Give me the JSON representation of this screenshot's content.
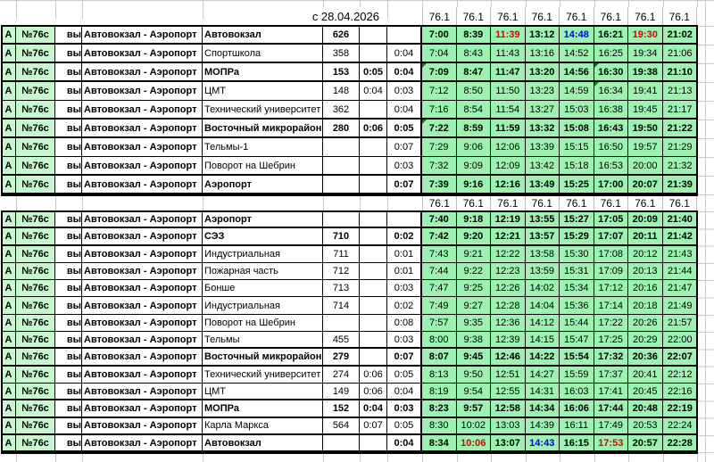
{
  "date_label": "с 28.04.2026",
  "column_header": "76.1",
  "header_repeat": 8,
  "route_prefix": {
    "letter": "А",
    "number": "№76с",
    "day": "вы",
    "route": "Автовокзал - Аэропорт"
  },
  "colors": {
    "time_cell_bg": "#9df2b1",
    "left_cell_bg": "#c8f7cf",
    "note_marker": "#0d7a0d",
    "highlight_red": "#e00000",
    "highlight_blue": "#0000ee"
  },
  "tables": [
    {
      "rows": [
        {
          "stop": "Автовокзал",
          "bold": true,
          "num": "626",
          "off1": "",
          "off2": "",
          "times": [
            "7:00",
            "8:39",
            "11:39",
            "13:12",
            "14:48",
            "16:21",
            "19:30",
            "21:02"
          ],
          "time_colors": {
            "2": "red",
            "4": "blue",
            "6": "red"
          }
        },
        {
          "stop": "Спортшкола",
          "num": "358",
          "off1": "",
          "off2": "0:04",
          "times": [
            "7:04",
            "8:43",
            "11:43",
            "13:16",
            "14:52",
            "16:25",
            "19:34",
            "21:06"
          ]
        },
        {
          "stop": "МОПРа",
          "bold": true,
          "num": "153",
          "off1": "0:05",
          "off2": "0:04",
          "times": [
            "7:09",
            "8:47",
            "11:47",
            "13:20",
            "14:56",
            "16:30",
            "19:38",
            "21:10"
          ],
          "notes": [
            0,
            5
          ]
        },
        {
          "stop": "ЦМТ",
          "num": "148",
          "off1": "0:04",
          "off2": "0:03",
          "times": [
            "7:12",
            "8:50",
            "11:50",
            "13:23",
            "14:59",
            "16:34",
            "19:41",
            "21:13"
          ],
          "notes": [
            5
          ]
        },
        {
          "stop": "Технический университет",
          "num": "362",
          "off1": "",
          "off2": "0:04",
          "times": [
            "7:16",
            "8:54",
            "11:54",
            "13:27",
            "15:03",
            "16:38",
            "19:45",
            "21:17"
          ]
        },
        {
          "stop": "Восточный микрорайон",
          "bold": true,
          "num": "280",
          "off1": "0:06",
          "off2": "0:05",
          "times": [
            "7:22",
            "8:59",
            "11:59",
            "13:32",
            "15:08",
            "16:43",
            "19:50",
            "21:22"
          ],
          "notes": [
            0
          ]
        },
        {
          "stop": "Тельмы-1",
          "num": "",
          "off1": "",
          "off2": "0:07",
          "times": [
            "7:29",
            "9:06",
            "12:06",
            "13:39",
            "15:15",
            "16:50",
            "19:57",
            "21:29"
          ]
        },
        {
          "stop": "Поворот на Шебрин",
          "num": "",
          "off1": "",
          "off2": "0:03",
          "times": [
            "7:32",
            "9:09",
            "12:09",
            "13:42",
            "15:18",
            "16:53",
            "20:00",
            "21:32"
          ]
        },
        {
          "stop": "Аэропорт",
          "bold": true,
          "num": "",
          "off1": "",
          "off2": "0:07",
          "times": [
            "7:39",
            "9:16",
            "12:16",
            "13:49",
            "15:25",
            "17:00",
            "20:07",
            "21:39"
          ]
        }
      ]
    },
    {
      "rows": [
        {
          "stop": "Аэропорт",
          "bold": true,
          "num": "",
          "off1": "",
          "off2": "",
          "times": [
            "7:40",
            "9:18",
            "12:19",
            "13:55",
            "15:27",
            "17:05",
            "20:09",
            "21:40"
          ]
        },
        {
          "stop": "СЭЗ",
          "bold": true,
          "num": "710",
          "off1": "",
          "off2": "0:02",
          "times": [
            "7:42",
            "9:20",
            "12:21",
            "13:57",
            "15:29",
            "17:07",
            "20:11",
            "21:42"
          ]
        },
        {
          "stop": "Индустриальная",
          "num": "711",
          "off1": "",
          "off2": "0:01",
          "times": [
            "7:43",
            "9:21",
            "12:22",
            "13:58",
            "15:30",
            "17:08",
            "20:12",
            "21:43"
          ]
        },
        {
          "stop": "Пожарная часть",
          "num": "712",
          "off1": "",
          "off2": "0:01",
          "times": [
            "7:44",
            "9:22",
            "12:23",
            "13:59",
            "15:31",
            "17:09",
            "20:13",
            "21:44"
          ]
        },
        {
          "stop": "Бонше",
          "num": "713",
          "off1": "",
          "off2": "0:03",
          "times": [
            "7:47",
            "9:25",
            "12:26",
            "14:02",
            "15:34",
            "17:12",
            "20:16",
            "21:47"
          ]
        },
        {
          "stop": "Индустриальная",
          "num": "714",
          "off1": "",
          "off2": "0:02",
          "times": [
            "7:49",
            "9:27",
            "12:28",
            "14:04",
            "15:36",
            "17:14",
            "20:18",
            "21:49"
          ]
        },
        {
          "stop": "Поворот на Шебрин",
          "num": "",
          "off1": "",
          "off2": "0:08",
          "times": [
            "7:57",
            "9:35",
            "12:36",
            "14:12",
            "15:44",
            "17:22",
            "20:26",
            "21:57"
          ]
        },
        {
          "stop": "Тельмы",
          "num": "455",
          "off1": "",
          "off2": "0:03",
          "times": [
            "8:00",
            "9:38",
            "12:39",
            "14:15",
            "15:47",
            "17:25",
            "20:29",
            "22:00"
          ]
        },
        {
          "stop": "Восточный микрорайон",
          "bold": true,
          "num": "279",
          "off1": "",
          "off2": "0:07",
          "times": [
            "8:07",
            "9:45",
            "12:46",
            "14:22",
            "15:54",
            "17:32",
            "20:36",
            "22:07"
          ]
        },
        {
          "stop": "Технический университет",
          "num": "274",
          "off1": "0:06",
          "off2": "0:05",
          "times": [
            "8:13",
            "9:50",
            "12:51",
            "14:27",
            "15:59",
            "17:37",
            "20:41",
            "22:12"
          ]
        },
        {
          "stop": "ЦМТ",
          "num": "149",
          "off1": "0:06",
          "off2": "0:04",
          "times": [
            "8:19",
            "9:54",
            "12:55",
            "14:31",
            "16:03",
            "17:41",
            "20:45",
            "22:16"
          ]
        },
        {
          "stop": "МОПРа",
          "bold": true,
          "num": "152",
          "off1": "0:04",
          "off2": "0:03",
          "times": [
            "8:23",
            "9:57",
            "12:58",
            "14:34",
            "16:06",
            "17:44",
            "20:48",
            "22:19"
          ]
        },
        {
          "stop": "Карла Маркса",
          "num": "564",
          "off1": "0:07",
          "off2": "0:05",
          "times": [
            "8:30",
            "10:02",
            "13:03",
            "14:39",
            "16:11",
            "17:49",
            "20:53",
            "22:24"
          ]
        },
        {
          "stop": "Автовокзал",
          "bold": true,
          "num": "",
          "off1": "",
          "off2": "0:04",
          "times": [
            "8:34",
            "10:06",
            "13:07",
            "14:43",
            "16:15",
            "17:53",
            "20:57",
            "22:28"
          ],
          "time_colors": {
            "1": "red",
            "3": "blue",
            "5": "red"
          }
        }
      ]
    }
  ]
}
